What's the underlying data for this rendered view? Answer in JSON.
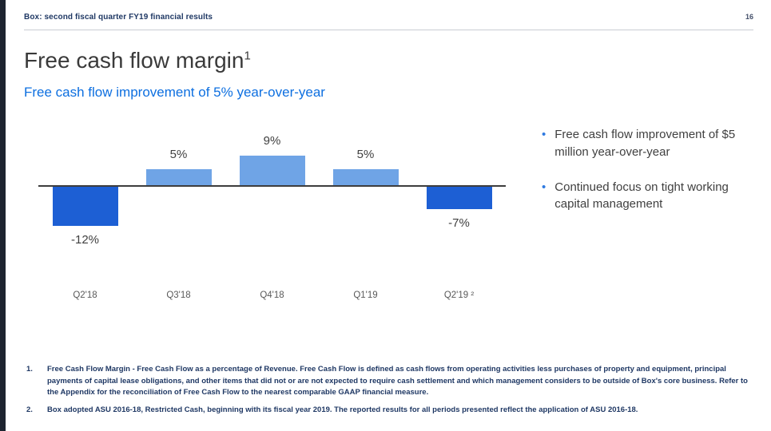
{
  "colors": {
    "positive_bar": "#6FA4E6",
    "negative_bar": "#1D5FD4",
    "subtitle_blue": "#0D6FE0",
    "footnote_navy": "#1F3864",
    "edge_strip": "#1D2430"
  },
  "header": {
    "breadcrumb": "Box: second fiscal quarter FY19 financial results",
    "page_number": "16"
  },
  "title": {
    "text": "Free cash flow margin",
    "superscript": "1"
  },
  "subtitle": "Free cash flow improvement of 5% year-over-year",
  "chart_data": {
    "type": "bar",
    "categories": [
      "Q2'18",
      "Q3'18",
      "Q4'18",
      "Q1'19",
      "Q2'19 ²"
    ],
    "values": [
      -12,
      5,
      9,
      5,
      -7
    ],
    "data_labels": [
      "-12%",
      "5%",
      "9%",
      "5%",
      "-7%"
    ],
    "title": "",
    "xlabel": "",
    "ylabel": "",
    "ylim": [
      -14,
      11
    ],
    "grid": false,
    "legend": false,
    "colors": {
      "positive": "#6FA4E6",
      "negative": "#1D5FD4"
    }
  },
  "bullets": [
    "Free cash flow improvement of $5 million year-over-year",
    "Continued focus on tight working capital management"
  ],
  "footnotes": [
    {
      "num": "1.",
      "text": "Free Cash Flow Margin - Free Cash Flow as a percentage of Revenue. Free Cash Flow is defined as cash flows from operating activities less purchases of property and equipment, principal payments of capital lease obligations, and other items that did not or are not expected to require cash settlement and which management considers to be outside of Box's core business. Refer to the Appendix for the reconciliation of Free Cash Flow to the nearest comparable GAAP financial measure."
    },
    {
      "num": "2.",
      "text": "Box adopted ASU 2016-18, Restricted Cash, beginning with its fiscal year 2019. The reported results for all periods presented reflect the application of ASU 2016-18."
    }
  ]
}
